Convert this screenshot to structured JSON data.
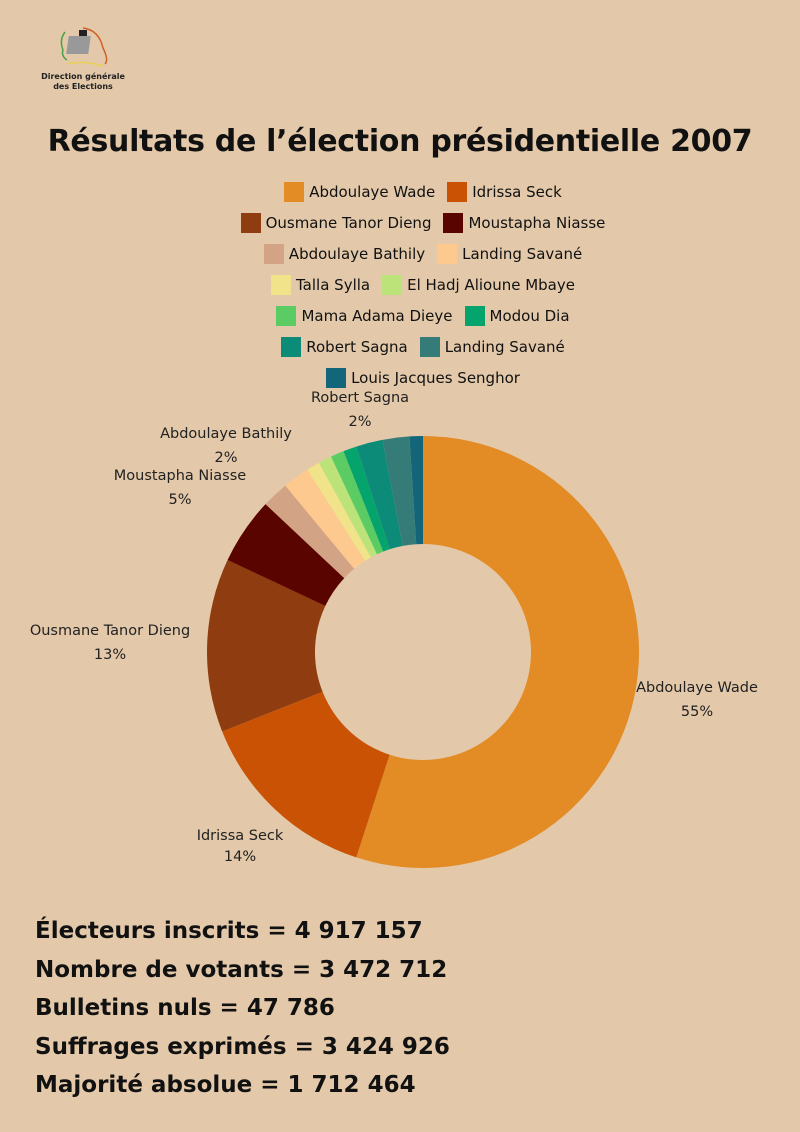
{
  "logo": {
    "text_line1": "Direction générale",
    "text_line2": "des Elections"
  },
  "title": "Résultats de l’élection présidentielle 2007",
  "chart_data": {
    "type": "pie",
    "subtype": "donut",
    "title": "Résultats de l’élection présidentielle 2007",
    "categories": [
      "Abdoulaye Wade",
      "Idrissa Seck",
      "Ousmane Tanor Dieng",
      "Moustapha Niasse",
      "Abdoulaye Bathily",
      "Landing Savané",
      "Talla Sylla",
      "El Hadj Alioune Mbaye",
      "Mama Adama Dieye",
      "Modou Dia",
      "Robert Sagna",
      "Landing Savané",
      "Louis Jacques Senghor"
    ],
    "values": [
      55,
      14,
      13,
      5,
      2,
      2,
      1,
      1,
      1,
      1,
      2,
      2,
      1
    ],
    "colors": [
      "#e38b24",
      "#c95204",
      "#8e3c10",
      "#5a0400",
      "#d3a385",
      "#fec98e",
      "#f0e38a",
      "#bce37a",
      "#5acc63",
      "#04a46c",
      "#0c8c78",
      "#357b77",
      "#136579"
    ],
    "data_labels": [
      {
        "name": "Abdoulaye Wade",
        "pct": "55%"
      },
      {
        "name": "Idrissa Seck",
        "pct": "14%"
      },
      {
        "name": "Ousmane Tanor Dieng",
        "pct": "13%"
      },
      {
        "name": "Moustapha Niasse",
        "pct": "5%"
      },
      {
        "name": "Abdoulaye Bathily",
        "pct": "2%"
      },
      {
        "name": "Robert Sagna",
        "pct": "2%"
      }
    ],
    "legend_position": "top"
  },
  "legend_rows": [
    [
      {
        "name": "Abdoulaye Wade",
        "color": "#e38b24"
      },
      {
        "name": "Idrissa Seck",
        "color": "#c95204"
      }
    ],
    [
      {
        "name": "Ousmane Tanor Dieng",
        "color": "#8e3c10"
      },
      {
        "name": "Moustapha Niasse",
        "color": "#5a0400"
      }
    ],
    [
      {
        "name": "Abdoulaye Bathily",
        "color": "#d3a385"
      },
      {
        "name": "Landing Savané",
        "color": "#fec98e"
      }
    ],
    [
      {
        "name": "Talla Sylla",
        "color": "#f0e38a"
      },
      {
        "name": "El Hadj Alioune Mbaye",
        "color": "#bce37a"
      }
    ],
    [
      {
        "name": "Mama Adama Dieye",
        "color": "#5acc63"
      },
      {
        "name": "Modou Dia",
        "color": "#04a46c"
      }
    ],
    [
      {
        "name": "Robert Sagna",
        "color": "#0c8c78"
      },
      {
        "name": "Landing Savané",
        "color": "#357b77"
      }
    ],
    [
      {
        "name": "Louis Jacques Senghor",
        "color": "#136579"
      }
    ]
  ],
  "stats": [
    "Électeurs inscrits = 4 917 157",
    "Nombre de votants = 3 472 712",
    "Bulletins nuls = 47 786",
    "Suffrages exprimés = 3 424 926",
    "Majorité absolue = 1 712 464"
  ]
}
